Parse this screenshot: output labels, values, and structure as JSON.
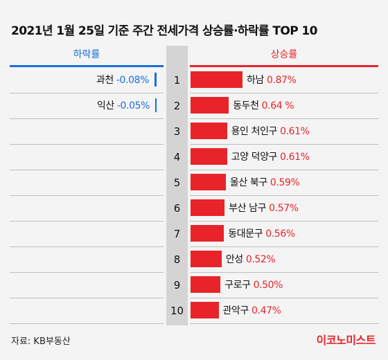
{
  "title": "2021년 1월 25일 기준 주간 전세가격 상승률·하락률 TOP 10",
  "headers": {
    "falling": "하락률",
    "rising": "상승률"
  },
  "chart_data": {
    "type": "bar",
    "title": "2021년 1월 25일 기준 주간 전세가격 상승률·하락률 TOP 10",
    "ranks": [
      "1",
      "2",
      "3",
      "4",
      "5",
      "6",
      "7",
      "8",
      "9",
      "10"
    ],
    "rising": [
      {
        "name": "하남",
        "value": 0.87,
        "label": "0.87%"
      },
      {
        "name": "동두천",
        "value": 0.64,
        "label": "0.64 %"
      },
      {
        "name": "용인 처인구",
        "value": 0.61,
        "label": "0.61%"
      },
      {
        "name": "고양 덕양구",
        "value": 0.61,
        "label": "0.61%"
      },
      {
        "name": "울산 북구",
        "value": 0.59,
        "label": "0.59%"
      },
      {
        "name": "부산 남구",
        "value": 0.57,
        "label": "0.57%"
      },
      {
        "name": "동대문구",
        "value": 0.56,
        "label": "0.56%"
      },
      {
        "name": "안성",
        "value": 0.52,
        "label": "0.52%"
      },
      {
        "name": "구로구",
        "value": 0.5,
        "label": "0.50%"
      },
      {
        "name": "관악구",
        "value": 0.47,
        "label": "0.47%"
      }
    ],
    "falling": [
      {
        "name": "과천",
        "value": -0.08,
        "label": "-0.08%"
      },
      {
        "name": "익산",
        "value": -0.05,
        "label": "-0.05%"
      }
    ],
    "colors": {
      "rising": "#e8232a",
      "falling": "#1a6ed8"
    }
  },
  "source": "자료: KB부동산",
  "brand": "이코노미스트"
}
